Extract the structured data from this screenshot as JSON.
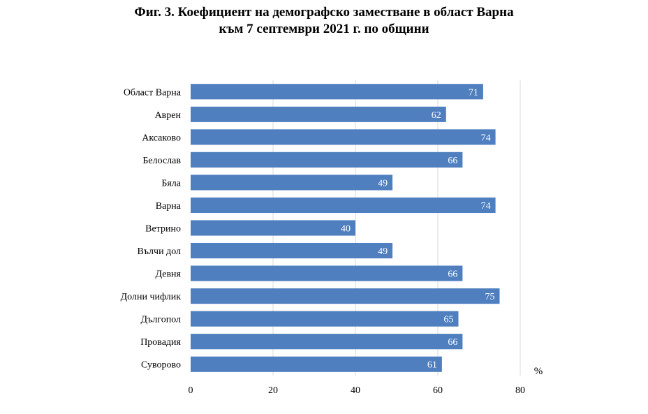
{
  "chart_data": {
    "type": "bar",
    "orientation": "horizontal",
    "title_line1": "Фиг. 3. Коефициент на демографско заместване в област Варна",
    "title_line2": "към 7 септември 2021 г. по общини",
    "unit": "%",
    "categories": [
      "Област Варна",
      "Аврен",
      "Аксаково",
      "Белослав",
      "Бяла",
      "Варна",
      "Ветрино",
      "Вълчи дол",
      "Девня",
      "Долни чифлик",
      "Дългопол",
      "Провадия",
      "Суворово"
    ],
    "values": [
      71,
      62,
      74,
      66,
      49,
      74,
      40,
      49,
      66,
      75,
      65,
      66,
      61
    ],
    "xlim": [
      0,
      80
    ],
    "xticks": [
      "0",
      "20",
      "40",
      "60",
      "80"
    ],
    "grid": true,
    "bar_color": "#4f7fbe",
    "grid_color": "#d9d9d9"
  }
}
